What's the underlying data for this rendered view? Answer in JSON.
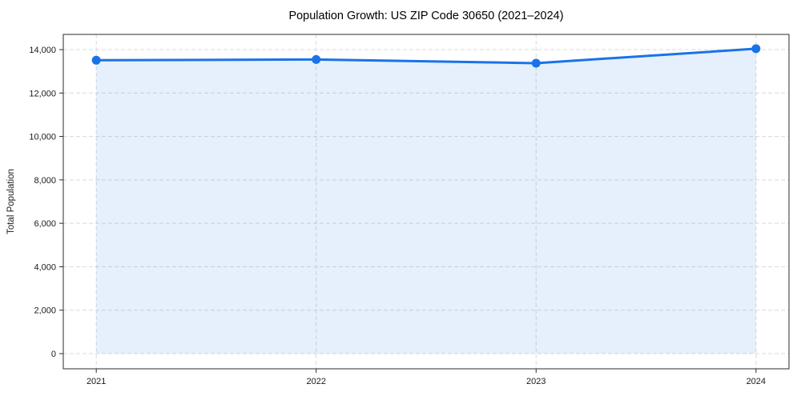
{
  "chart_data": {
    "type": "line",
    "title": "Population Growth: US ZIP Code 30650 (2021–2024)",
    "xlabel": "",
    "ylabel": "Total Population",
    "x": [
      2021,
      2022,
      2023,
      2024
    ],
    "series": [
      {
        "name": "Total Population",
        "values": [
          13510,
          13545,
          13375,
          14040
        ]
      }
    ],
    "area_fill": true,
    "fill_baseline": 0,
    "xlim": [
      2020.85,
      2024.15
    ],
    "ylim": [
      -700,
      14700
    ],
    "xticks": [
      {
        "value": 2021,
        "label": "2021"
      },
      {
        "value": 2022,
        "label": "2022"
      },
      {
        "value": 2023,
        "label": "2023"
      },
      {
        "value": 2024,
        "label": "2024"
      }
    ],
    "yticks": [
      {
        "value": 0,
        "label": "0"
      },
      {
        "value": 2000,
        "label": "2,000"
      },
      {
        "value": 4000,
        "label": "4,000"
      },
      {
        "value": 6000,
        "label": "6,000"
      },
      {
        "value": 8000,
        "label": "8,000"
      },
      {
        "value": 10000,
        "label": "10,000"
      },
      {
        "value": 12000,
        "label": "12,000"
      },
      {
        "value": 14000,
        "label": "14,000"
      }
    ],
    "grid": true,
    "grid_style": "dashed",
    "legend": "none",
    "colors": {
      "line": "#1a73e8",
      "marker": "#1a73e8",
      "fill": "rgba(26,115,232,0.11)",
      "grid": "#d9d9d9",
      "spine": "#2b2b2b",
      "text": "#1a1a1a",
      "background": "#ffffff"
    }
  }
}
